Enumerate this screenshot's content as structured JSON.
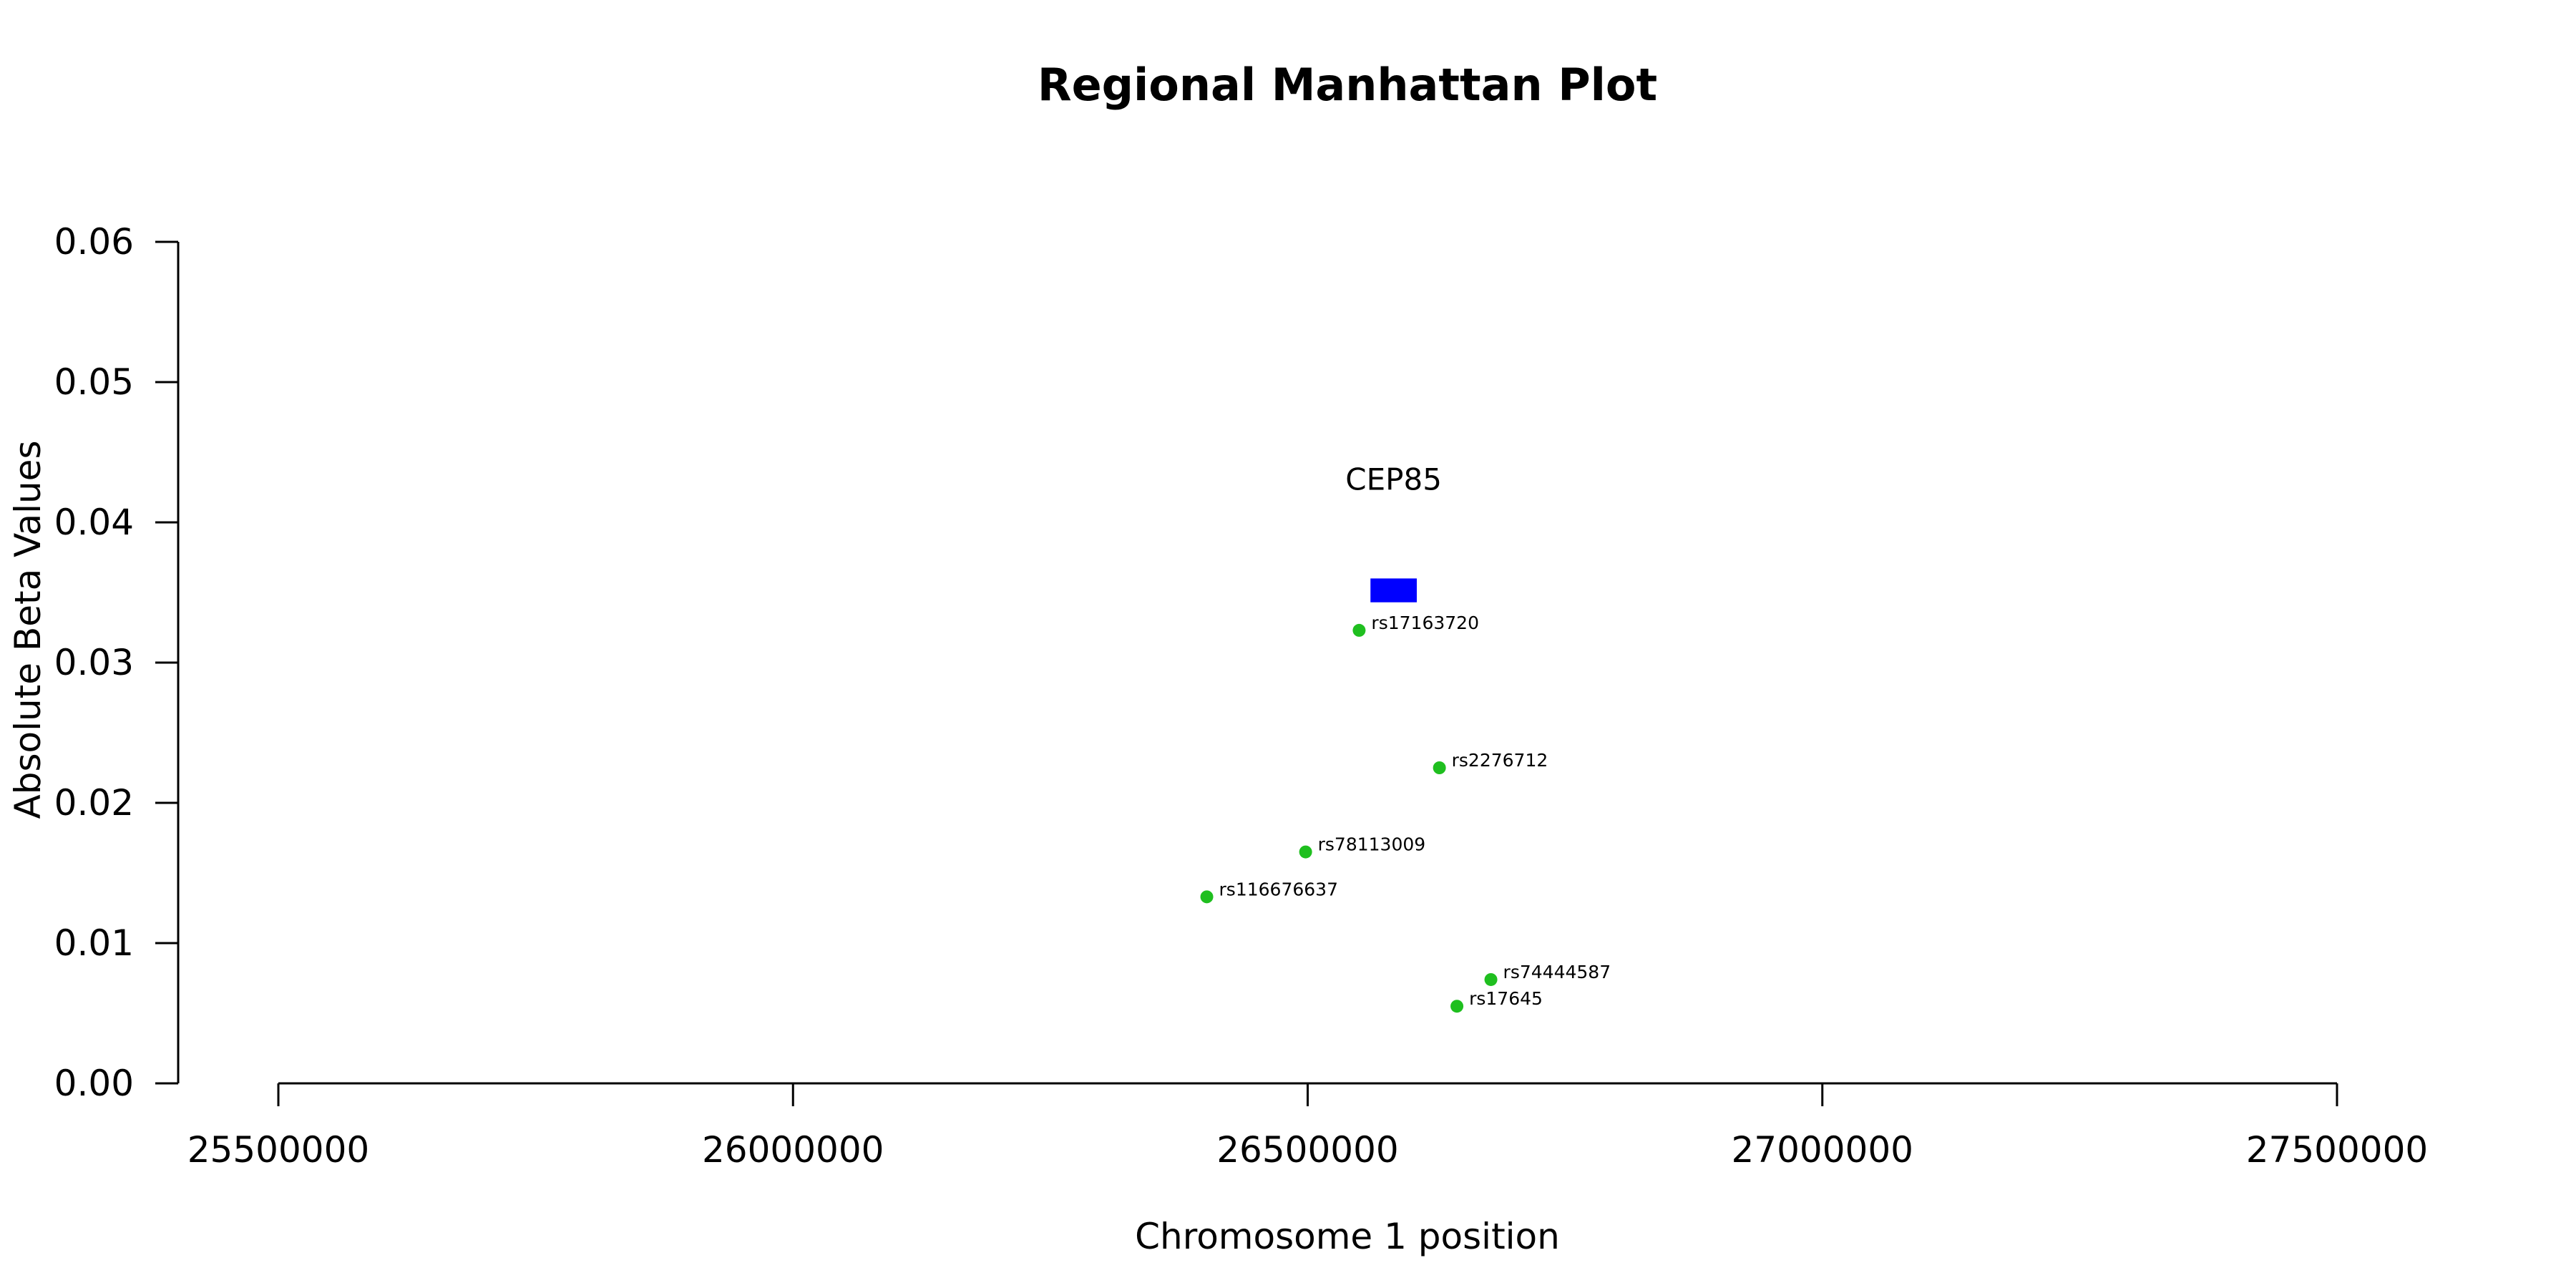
{
  "chart_data": {
    "type": "scatter",
    "title": "Regional Manhattan Plot",
    "xlabel": "Chromosome 1 position",
    "ylabel": "Absolute Beta Values",
    "xlim": [
      25500000,
      27500000
    ],
    "ylim": [
      0.0,
      0.06
    ],
    "x_ticks": [
      25500000,
      26000000,
      26500000,
      27000000,
      27500000
    ],
    "x_tick_labels": [
      "25500000",
      "26000000",
      "26500000",
      "27000000",
      "27500000"
    ],
    "y_ticks": [
      0.0,
      0.01,
      0.02,
      0.03,
      0.04,
      0.05,
      0.06
    ],
    "y_tick_labels": [
      "0.00",
      "0.01",
      "0.02",
      "0.03",
      "0.04",
      "0.05",
      "0.06"
    ],
    "grid": false,
    "point_color": "#1fbf1f",
    "points": [
      {
        "label": "rs17163720",
        "x": 26550000,
        "y": 0.0323
      },
      {
        "label": "rs2276712",
        "x": 26628000,
        "y": 0.0225
      },
      {
        "label": "rs78113009",
        "x": 26498000,
        "y": 0.0165
      },
      {
        "label": "rs116676637",
        "x": 26402000,
        "y": 0.0133
      },
      {
        "label": "rs74444587",
        "x": 26678000,
        "y": 0.0074
      },
      {
        "label": "rs17645",
        "x": 26645000,
        "y": 0.0055
      }
    ],
    "gene": {
      "name": "CEP85",
      "start": 26561000,
      "end": 26606000,
      "y_bottom": 0.0343,
      "y_top": 0.036,
      "label_y": 0.0432,
      "color": "#0000ff"
    }
  }
}
